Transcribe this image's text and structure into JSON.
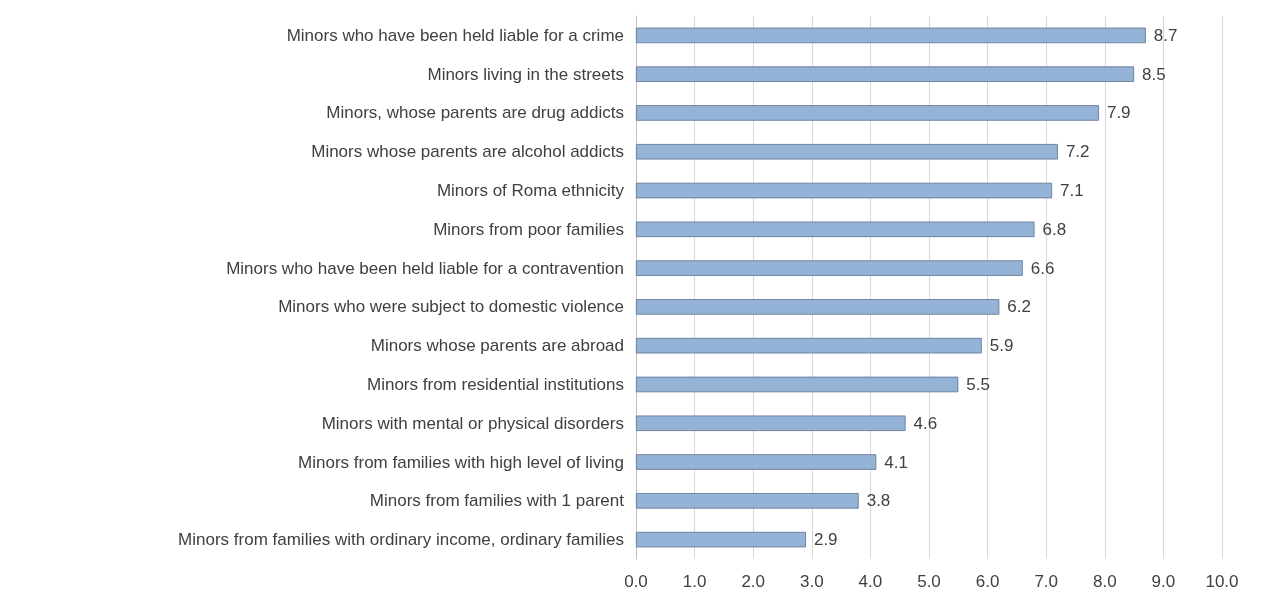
{
  "chart_data": {
    "type": "bar",
    "orientation": "horizontal",
    "categories": [
      "Minors who have been held liable for a crime",
      "Minors living in the streets",
      "Minors, whose parents are drug addicts",
      "Minors whose parents are alcohol addicts",
      "Minors of Roma ethnicity",
      "Minors from poor families",
      "Minors who have been held liable for a contravention",
      "Minors who were subject to domestic violence",
      "Minors whose parents are abroad",
      "Minors from residential institutions",
      "Minors with mental or physical disorders",
      "Minors from families with high level of living",
      "Minors from families with 1 parent",
      "Minors from families with ordinary income, ordinary families"
    ],
    "values": [
      8.7,
      8.5,
      7.9,
      7.2,
      7.1,
      6.8,
      6.6,
      6.2,
      5.9,
      5.5,
      4.6,
      4.1,
      3.8,
      2.9
    ],
    "color": "#95b3d7",
    "xlim": [
      0,
      10
    ],
    "xticks": [
      {
        "value": 0,
        "label": "0.0"
      },
      {
        "value": 1,
        "label": "1.0"
      },
      {
        "value": 2,
        "label": "2.0"
      },
      {
        "value": 3,
        "label": "3.0"
      },
      {
        "value": 4,
        "label": "4.0"
      },
      {
        "value": 5,
        "label": "5.0"
      },
      {
        "value": 6,
        "label": "6.0"
      },
      {
        "value": 7,
        "label": "7.0"
      },
      {
        "value": 8,
        "label": "8.0"
      },
      {
        "value": 9,
        "label": "9.0"
      },
      {
        "value": 10,
        "label": "10.0"
      }
    ],
    "grid": "x",
    "data_labels": true
  }
}
